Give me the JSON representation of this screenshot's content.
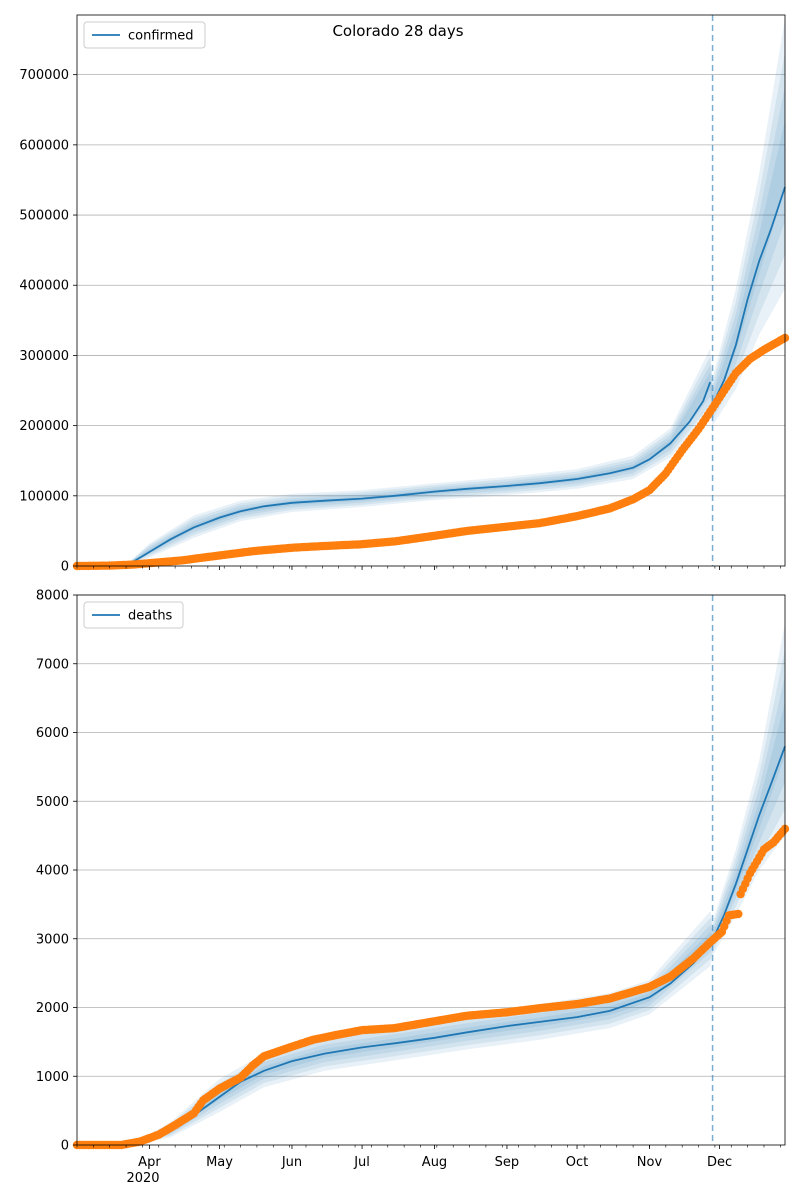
{
  "chart_data": {
    "title": "Colorado 28 days",
    "x_axis": {
      "month_ticks": [
        "Apr",
        "May",
        "Jun",
        "Jul",
        "Aug",
        "Sep",
        "Oct",
        "Nov",
        "Dec"
      ],
      "year_label": "2020",
      "range": [
        "2020-03-01",
        "2020-12-29"
      ]
    },
    "forecast_start": "2020-11-28",
    "colors": {
      "model": "#1f77b4",
      "observed": "#ff7f0e",
      "band": "#1f77b4",
      "vline": "#1f77b4"
    },
    "panels": [
      {
        "type": "line",
        "legend_label": "confirmed",
        "legend_position": "upper left",
        "grid": true,
        "ylim": [
          0,
          785000
        ],
        "yticks": [
          0,
          100000,
          200000,
          300000,
          400000,
          500000,
          600000,
          700000
        ],
        "model_curve": [
          [
            "2020-03-01",
            0
          ],
          [
            "2020-03-22",
            0
          ],
          [
            "2020-03-27",
            10000
          ],
          [
            "2020-04-01",
            20000
          ],
          [
            "2020-04-10",
            38000
          ],
          [
            "2020-04-20",
            55000
          ],
          [
            "2020-05-01",
            69000
          ],
          [
            "2020-05-10",
            78000
          ],
          [
            "2020-05-20",
            85000
          ],
          [
            "2020-06-01",
            90000
          ],
          [
            "2020-06-15",
            93000
          ],
          [
            "2020-07-01",
            96000
          ],
          [
            "2020-07-15",
            100000
          ],
          [
            "2020-08-01",
            106000
          ],
          [
            "2020-08-15",
            110000
          ],
          [
            "2020-09-01",
            114000
          ],
          [
            "2020-09-15",
            118000
          ],
          [
            "2020-10-01",
            124000
          ],
          [
            "2020-10-15",
            132000
          ],
          [
            "2020-10-25",
            140000
          ],
          [
            "2020-11-01",
            152000
          ],
          [
            "2020-11-10",
            175000
          ],
          [
            "2020-11-18",
            205000
          ],
          [
            "2020-11-24",
            235000
          ],
          [
            "2020-11-27",
            262000
          ]
        ],
        "forecast_curve": [
          [
            "2020-11-28",
            230000
          ],
          [
            "2020-12-03",
            265000
          ],
          [
            "2020-12-08",
            315000
          ],
          [
            "2020-12-13",
            380000
          ],
          [
            "2020-12-18",
            435000
          ],
          [
            "2020-12-23",
            480000
          ],
          [
            "2020-12-29",
            540000
          ]
        ],
        "band_upper": [
          [
            "2020-03-01",
            0
          ],
          [
            "2020-03-22",
            2000
          ],
          [
            "2020-04-01",
            32000
          ],
          [
            "2020-04-20",
            72000
          ],
          [
            "2020-05-10",
            93000
          ],
          [
            "2020-06-01",
            103000
          ],
          [
            "2020-07-01",
            108000
          ],
          [
            "2020-08-01",
            118000
          ],
          [
            "2020-09-01",
            127000
          ],
          [
            "2020-10-01",
            138000
          ],
          [
            "2020-10-25",
            157000
          ],
          [
            "2020-11-10",
            196000
          ],
          [
            "2020-11-27",
            310000
          ],
          [
            "2020-11-28",
            268000
          ],
          [
            "2020-12-08",
            395000
          ],
          [
            "2020-12-18",
            560000
          ],
          [
            "2020-12-29",
            780000
          ]
        ],
        "band_lower": [
          [
            "2020-03-01",
            0
          ],
          [
            "2020-03-22",
            0
          ],
          [
            "2020-04-01",
            12000
          ],
          [
            "2020-04-20",
            40000
          ],
          [
            "2020-05-10",
            64000
          ],
          [
            "2020-06-01",
            77000
          ],
          [
            "2020-07-01",
            84000
          ],
          [
            "2020-08-01",
            94000
          ],
          [
            "2020-09-01",
            101000
          ],
          [
            "2020-10-01",
            110000
          ],
          [
            "2020-10-25",
            124000
          ],
          [
            "2020-11-10",
            155000
          ],
          [
            "2020-11-27",
            218000
          ],
          [
            "2020-11-28",
            200000
          ],
          [
            "2020-12-08",
            252000
          ],
          [
            "2020-12-18",
            330000
          ],
          [
            "2020-12-29",
            395000
          ]
        ],
        "observed": [
          [
            "2020-03-01",
            0
          ],
          [
            "2020-03-15",
            500
          ],
          [
            "2020-03-25",
            2000
          ],
          [
            "2020-04-01",
            4000
          ],
          [
            "2020-04-15",
            8000
          ],
          [
            "2020-05-01",
            15000
          ],
          [
            "2020-05-15",
            21000
          ],
          [
            "2020-06-01",
            26000
          ],
          [
            "2020-06-15",
            28500
          ],
          [
            "2020-07-01",
            31000
          ],
          [
            "2020-07-15",
            35000
          ],
          [
            "2020-08-01",
            43000
          ],
          [
            "2020-08-15",
            50000
          ],
          [
            "2020-09-01",
            56000
          ],
          [
            "2020-09-15",
            61000
          ],
          [
            "2020-10-01",
            71000
          ],
          [
            "2020-10-15",
            82000
          ],
          [
            "2020-10-25",
            95000
          ],
          [
            "2020-11-01",
            108000
          ],
          [
            "2020-11-08",
            132000
          ],
          [
            "2020-11-15",
            165000
          ],
          [
            "2020-11-22",
            195000
          ],
          [
            "2020-11-28",
            225000
          ],
          [
            "2020-12-03",
            250000
          ],
          [
            "2020-12-08",
            275000
          ],
          [
            "2020-12-14",
            295000
          ],
          [
            "2020-12-20",
            308000
          ],
          [
            "2020-12-29",
            325000
          ]
        ]
      },
      {
        "type": "line",
        "legend_label": "deaths",
        "legend_position": "upper left",
        "grid": true,
        "ylim": [
          0,
          8000
        ],
        "yticks": [
          0,
          1000,
          2000,
          3000,
          4000,
          5000,
          6000,
          7000,
          8000
        ],
        "model_curve": [
          [
            "2020-03-01",
            0
          ],
          [
            "2020-03-25",
            0
          ],
          [
            "2020-04-01",
            50
          ],
          [
            "2020-04-10",
            200
          ],
          [
            "2020-04-20",
            430
          ],
          [
            "2020-05-01",
            700
          ],
          [
            "2020-05-10",
            920
          ],
          [
            "2020-05-20",
            1080
          ],
          [
            "2020-06-01",
            1220
          ],
          [
            "2020-06-15",
            1330
          ],
          [
            "2020-07-01",
            1420
          ],
          [
            "2020-07-15",
            1480
          ],
          [
            "2020-08-01",
            1560
          ],
          [
            "2020-08-15",
            1640
          ],
          [
            "2020-09-01",
            1730
          ],
          [
            "2020-09-15",
            1790
          ],
          [
            "2020-10-01",
            1860
          ],
          [
            "2020-10-15",
            1950
          ],
          [
            "2020-11-01",
            2150
          ],
          [
            "2020-11-10",
            2350
          ],
          [
            "2020-11-20",
            2650
          ],
          [
            "2020-11-27",
            2950
          ]
        ],
        "forecast_curve": [
          [
            "2020-11-28",
            2980
          ],
          [
            "2020-12-03",
            3350
          ],
          [
            "2020-12-08",
            3800
          ],
          [
            "2020-12-13",
            4300
          ],
          [
            "2020-12-18",
            4800
          ],
          [
            "2020-12-23",
            5250
          ],
          [
            "2020-12-29",
            5800
          ]
        ],
        "band_upper": [
          [
            "2020-03-01",
            0
          ],
          [
            "2020-03-25",
            20
          ],
          [
            "2020-04-10",
            330
          ],
          [
            "2020-05-01",
            960
          ],
          [
            "2020-05-20",
            1330
          ],
          [
            "2020-06-15",
            1590
          ],
          [
            "2020-07-15",
            1740
          ],
          [
            "2020-08-15",
            1900
          ],
          [
            "2020-09-15",
            2050
          ],
          [
            "2020-10-15",
            2210
          ],
          [
            "2020-11-01",
            2400
          ],
          [
            "2020-11-27",
            3400
          ],
          [
            "2020-11-28",
            3250
          ],
          [
            "2020-12-08",
            4300
          ],
          [
            "2020-12-18",
            5600
          ],
          [
            "2020-12-29",
            7600
          ]
        ],
        "band_lower": [
          [
            "2020-03-01",
            0
          ],
          [
            "2020-03-25",
            0
          ],
          [
            "2020-04-10",
            110
          ],
          [
            "2020-05-01",
            480
          ],
          [
            "2020-05-20",
            840
          ],
          [
            "2020-06-15",
            1080
          ],
          [
            "2020-07-15",
            1230
          ],
          [
            "2020-08-15",
            1390
          ],
          [
            "2020-09-15",
            1530
          ],
          [
            "2020-10-15",
            1700
          ],
          [
            "2020-11-01",
            1900
          ],
          [
            "2020-11-27",
            2600
          ],
          [
            "2020-11-28",
            2750
          ],
          [
            "2020-12-08",
            3350
          ],
          [
            "2020-12-18",
            4000
          ],
          [
            "2020-12-29",
            4500
          ]
        ],
        "observed": [
          [
            "2020-03-01",
            0
          ],
          [
            "2020-03-20",
            0
          ],
          [
            "2020-03-28",
            50
          ],
          [
            "2020-04-05",
            150
          ],
          [
            "2020-04-12",
            290
          ],
          [
            "2020-04-20",
            460
          ],
          [
            "2020-04-24",
            650
          ],
          [
            "2020-05-01",
            820
          ],
          [
            "2020-05-10",
            980
          ],
          [
            "2020-05-15",
            1150
          ],
          [
            "2020-05-20",
            1290
          ],
          [
            "2020-06-01",
            1430
          ],
          [
            "2020-06-10",
            1530
          ],
          [
            "2020-06-20",
            1600
          ],
          [
            "2020-07-01",
            1670
          ],
          [
            "2020-07-15",
            1700
          ],
          [
            "2020-08-01",
            1800
          ],
          [
            "2020-08-15",
            1880
          ],
          [
            "2020-09-01",
            1930
          ],
          [
            "2020-09-15",
            1990
          ],
          [
            "2020-10-01",
            2050
          ],
          [
            "2020-10-15",
            2130
          ],
          [
            "2020-11-01",
            2300
          ],
          [
            "2020-11-10",
            2450
          ],
          [
            "2020-11-20",
            2720
          ],
          [
            "2020-11-27",
            2950
          ],
          [
            "2020-12-02",
            3100
          ],
          [
            "2020-12-05",
            3340
          ],
          [
            "2020-12-09",
            3360
          ],
          [
            "2020-12-10",
            3650
          ],
          [
            "2020-12-14",
            3950
          ],
          [
            "2020-12-20",
            4300
          ],
          [
            "2020-12-24",
            4400
          ],
          [
            "2020-12-29",
            4600
          ]
        ]
      }
    ]
  }
}
